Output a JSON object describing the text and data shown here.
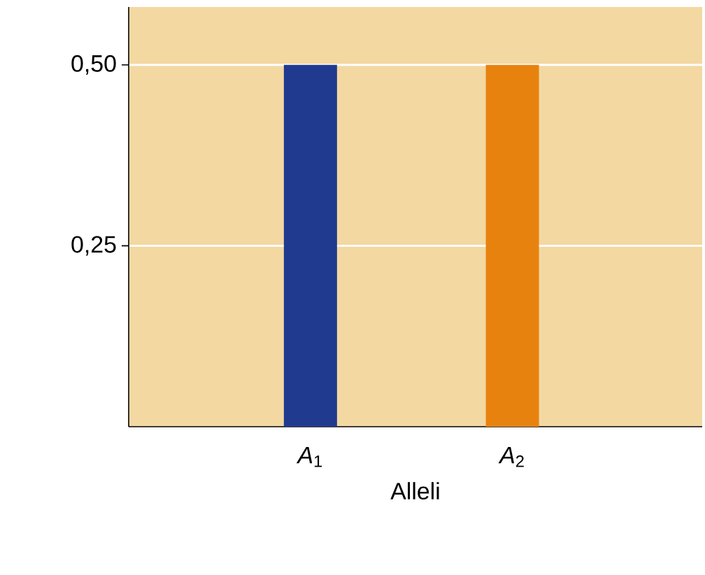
{
  "chart_data": {
    "type": "bar",
    "xlabel": "Alleli",
    "categories": [
      "*A*$_{1}$",
      "*A*$_{2}$"
    ],
    "values": [
      0.5,
      0.5
    ],
    "colors": [
      "#1f3a8f",
      "#e8820e"
    ],
    "ylim": [
      0,
      0.58
    ],
    "yticks": [
      {
        "value": 0.25,
        "label": "0,25"
      },
      {
        "value": 0.5,
        "label": "0,50"
      }
    ],
    "grid": "y"
  }
}
